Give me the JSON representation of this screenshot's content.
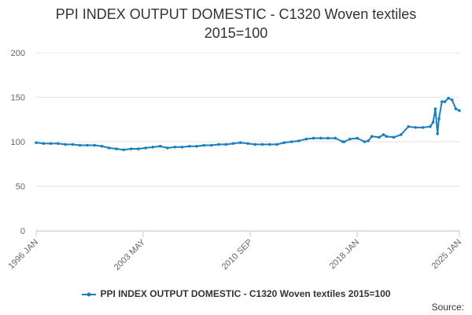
{
  "chart_data": {
    "type": "line",
    "title": "PPI INDEX OUTPUT DOMESTIC - C1320 Woven textiles",
    "subtitle": "2015=100",
    "xlabel": "",
    "ylabel": "",
    "ylim": [
      0,
      200
    ],
    "y_ticks": [
      0,
      50,
      100,
      150,
      200
    ],
    "x_range": [
      1996.0,
      2025.0
    ],
    "x_tick_positions": [
      1996.0,
      2003.33,
      2010.67,
      2018.0,
      2025.0
    ],
    "x_tick_labels": [
      "1996 JAN",
      "2003 MAY",
      "2010 SEP",
      "2018 JAN",
      "2025 JAN"
    ],
    "legend_position": "bottom-center",
    "series": [
      {
        "name": "PPI INDEX OUTPUT DOMESTIC - C1320 Woven textiles 2015=100",
        "color": "#1a7fc1",
        "x": [
          1996.0,
          1996.5,
          1997.0,
          1997.5,
          1998.0,
          1998.5,
          1999.0,
          1999.5,
          2000.0,
          2000.5,
          2001.0,
          2001.5,
          2002.0,
          2002.5,
          2003.0,
          2003.5,
          2004.0,
          2004.5,
          2005.0,
          2005.5,
          2006.0,
          2006.5,
          2007.0,
          2007.5,
          2008.0,
          2008.5,
          2009.0,
          2009.5,
          2010.0,
          2010.5,
          2011.0,
          2011.5,
          2012.0,
          2012.5,
          2013.0,
          2013.5,
          2014.0,
          2014.5,
          2015.0,
          2015.5,
          2016.0,
          2016.5,
          2017.0,
          2017.1,
          2017.5,
          2018.0,
          2018.5,
          2018.75,
          2019.0,
          2019.5,
          2019.8,
          2020.0,
          2020.5,
          2021.0,
          2021.5,
          2022.0,
          2022.5,
          2023.0,
          2023.2,
          2023.35,
          2023.5,
          2023.6,
          2023.8,
          2024.0,
          2024.25,
          2024.5,
          2024.75,
          2025.0
        ],
        "values": [
          99,
          98,
          98,
          98,
          97,
          97,
          96,
          96,
          96,
          95,
          93,
          92,
          91,
          92,
          92,
          93,
          94,
          95,
          93,
          94,
          94,
          95,
          95,
          96,
          96,
          97,
          97,
          98,
          99,
          98,
          97,
          97,
          97,
          97,
          99,
          100,
          101,
          103,
          104,
          104,
          104,
          104,
          100,
          100,
          103,
          104,
          100,
          101,
          106,
          105,
          108,
          106,
          105,
          108,
          117,
          116,
          116,
          117,
          122,
          137,
          109,
          126,
          145,
          145,
          149,
          147,
          137,
          135
        ]
      }
    ]
  },
  "source_label": "Source:"
}
